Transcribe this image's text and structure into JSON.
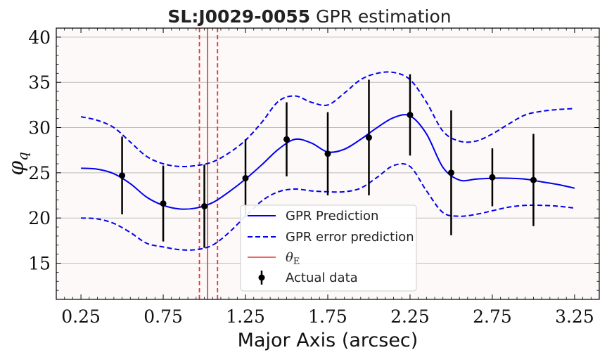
{
  "chart_data": {
    "type": "line",
    "title_bold": "SL:J0029-0055",
    "title_rest": " GPR estimation",
    "xlabel": "Major Axis (arcsec)",
    "ylabel_main": "φ",
    "ylabel_sub": "q",
    "xlim": [
      0.1,
      3.4
    ],
    "ylim": [
      11,
      41
    ],
    "x_ticks": [
      0.25,
      0.75,
      1.25,
      1.75,
      2.25,
      2.75,
      3.25
    ],
    "x_tick_labels": [
      "0.25",
      "0.75",
      "1.25",
      "1.75",
      "2.25",
      "2.75",
      "3.25"
    ],
    "y_ticks": [
      15,
      20,
      25,
      30,
      35,
      40
    ],
    "y_tick_labels": [
      "15",
      "20",
      "25",
      "30",
      "35",
      "40"
    ],
    "grid": "horizontal",
    "legend_position": "lower-center",
    "colors": {
      "prediction": "#0000ee",
      "theta": "#ee3333",
      "data": "#000000",
      "plot_bg": "#fdf9f9",
      "grid": "#bbbbbb"
    },
    "prediction": {
      "name": "GPR Prediction",
      "x": [
        0.25,
        0.35,
        0.45,
        0.55,
        0.65,
        0.75,
        0.85,
        0.95,
        1.05,
        1.15,
        1.25,
        1.35,
        1.45,
        1.55,
        1.65,
        1.75,
        1.85,
        1.95,
        2.05,
        2.15,
        2.25,
        2.35,
        2.45,
        2.55,
        2.65,
        2.75,
        2.85,
        2.95,
        3.05,
        3.15,
        3.25
      ],
      "values": [
        25.5,
        25.4,
        24.9,
        23.8,
        22.3,
        21.4,
        21.0,
        21.1,
        21.7,
        22.9,
        24.3,
        25.9,
        27.6,
        28.7,
        28.3,
        27.3,
        27.6,
        28.7,
        30.0,
        31.1,
        31.3,
        29.3,
        25.6,
        24.2,
        24.3,
        24.4,
        24.4,
        24.3,
        24.0,
        23.7,
        23.3
      ]
    },
    "error_upper": {
      "name": "GPR error prediction",
      "x": [
        0.25,
        0.35,
        0.45,
        0.55,
        0.65,
        0.75,
        0.85,
        0.95,
        1.05,
        1.15,
        1.25,
        1.35,
        1.45,
        1.55,
        1.65,
        1.75,
        1.85,
        1.95,
        2.05,
        2.15,
        2.25,
        2.35,
        2.45,
        2.55,
        2.65,
        2.75,
        2.85,
        2.95,
        3.05,
        3.15,
        3.25
      ],
      "values": [
        31.2,
        30.8,
        30.0,
        28.4,
        26.8,
        26.0,
        25.7,
        25.8,
        26.2,
        27.2,
        28.6,
        30.6,
        32.9,
        33.5,
        32.8,
        32.5,
        33.8,
        35.3,
        36.0,
        36.1,
        35.3,
        32.8,
        29.6,
        28.5,
        28.5,
        29.3,
        30.4,
        31.4,
        31.8,
        32.0,
        32.1
      ]
    },
    "error_lower": {
      "x": [
        0.25,
        0.35,
        0.45,
        0.55,
        0.65,
        0.75,
        0.85,
        0.95,
        1.05,
        1.15,
        1.25,
        1.35,
        1.45,
        1.55,
        1.65,
        1.75,
        1.85,
        1.95,
        2.05,
        2.15,
        2.25,
        2.35,
        2.45,
        2.55,
        2.65,
        2.75,
        2.85,
        2.95,
        3.05,
        3.15,
        3.25
      ],
      "values": [
        20.0,
        19.9,
        19.4,
        18.4,
        17.2,
        16.8,
        16.5,
        16.5,
        17.0,
        18.4,
        20.2,
        21.9,
        22.9,
        23.2,
        23.0,
        22.9,
        22.9,
        23.3,
        24.5,
        25.8,
        25.7,
        23.0,
        20.6,
        20.2,
        20.4,
        20.8,
        21.2,
        21.4,
        21.4,
        21.3,
        21.1
      ]
    },
    "theta_e": {
      "name": "θ",
      "subscript": "E",
      "value": 1.02,
      "bounds": [
        0.97,
        1.08
      ]
    },
    "data_points": {
      "name": "Actual data",
      "x": [
        0.5,
        0.75,
        1.0,
        1.25,
        1.5,
        1.75,
        2.0,
        2.25,
        2.5,
        2.75,
        3.0
      ],
      "y": [
        24.7,
        21.6,
        21.3,
        24.4,
        28.7,
        27.1,
        28.9,
        31.4,
        25.0,
        24.5,
        24.2
      ],
      "yerr": [
        4.3,
        4.2,
        4.6,
        4.3,
        4.1,
        4.6,
        6.4,
        4.5,
        6.9,
        3.2,
        5.1
      ]
    },
    "legend": [
      {
        "label": "GPR Prediction",
        "style": "solid-blue"
      },
      {
        "label": "GPR error prediction",
        "style": "dashed-blue"
      },
      {
        "label": "θ",
        "label_sub": "E",
        "style": "solid-red"
      },
      {
        "label": "Actual data",
        "style": "errorbar"
      }
    ]
  }
}
